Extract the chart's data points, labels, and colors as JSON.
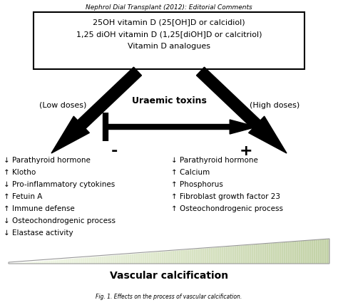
{
  "title_top": "Nephrol Dial Transplant (2012): Editorial Comments",
  "box_lines": [
    "25OH vitamin D (25[OH]D or calcidiol)",
    "1,25 diOH vitamin D (1,25[diOH]D or calcitriol)",
    "Vitamin D analogues"
  ],
  "low_doses_label": "(Low doses)",
  "high_doses_label": "(High doses)",
  "uraemic_toxins_label": "Uraemic toxins",
  "minus_label": "-",
  "plus_label": "+",
  "left_items": [
    "↓ Parathyroid hormone",
    "↑ Klotho",
    "↓ Pro-inflammatory cytokines",
    "↑ Fetuin A",
    "↑ Immune defense",
    "↓ Osteochondrogenic process",
    "↓ Elastase activity"
  ],
  "right_items": [
    "↓ Parathyroid hormone",
    "↑ Calcium",
    "↑ Phosphorus",
    "↑ Fibroblast growth factor 23",
    "↑ Osteochondrogenic process"
  ],
  "vascular_label": "Vascular calcification",
  "background_color": "#ffffff"
}
